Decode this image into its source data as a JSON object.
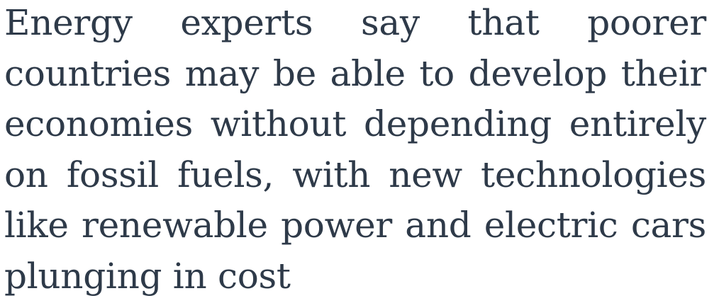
{
  "article": {
    "paragraph": "Energy experts say that poorer countries may be able to develop their economies without depending entirely on fossil fuels, with new technologies like renewable power and electric cars plunging in cost"
  },
  "colors": {
    "text": "#2e3a49",
    "background": "#ffffff"
  }
}
